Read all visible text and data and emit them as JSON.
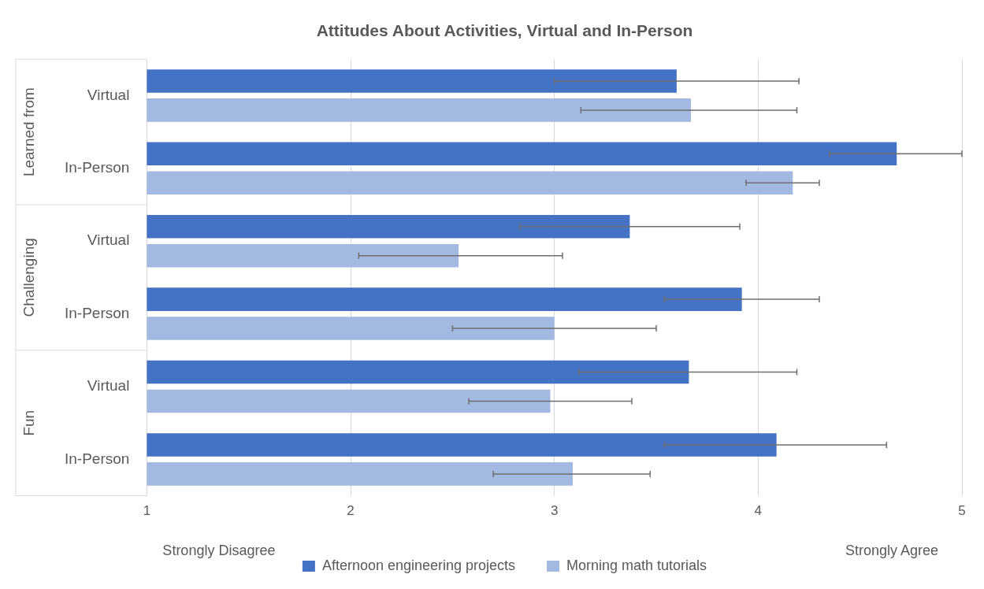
{
  "chart_data": {
    "type": "bar",
    "orientation": "horizontal",
    "title": "Attitudes About Activities, Virtual and In-Person",
    "categories": [
      "Virtual",
      "In-Person",
      "Virtual",
      "In-Person",
      "Virtual",
      "In-Person"
    ],
    "series": [
      {
        "name": "Afternoon engineering projects",
        "color": "#4472c4",
        "values": [
          3.6,
          4.68,
          3.37,
          3.92,
          3.66,
          4.09
        ],
        "errors": [
          [
            3.0,
            4.2
          ],
          [
            4.35,
            5.0
          ],
          [
            2.83,
            3.91
          ],
          [
            3.54,
            4.3
          ],
          [
            3.12,
            4.19
          ],
          [
            3.54,
            4.63
          ]
        ]
      },
      {
        "name": "Morning math tutorials",
        "color": "#a3b9e2",
        "values": [
          3.67,
          4.17,
          2.53,
          3.0,
          2.98,
          3.09
        ],
        "errors": [
          [
            3.13,
            4.19
          ],
          [
            3.94,
            4.3
          ],
          [
            2.04,
            3.04
          ],
          [
            2.5,
            3.5
          ],
          [
            2.58,
            3.38
          ],
          [
            2.7,
            3.47
          ]
        ]
      }
    ],
    "xlim": [
      1,
      5
    ],
    "xticks": [
      1,
      2,
      3,
      4,
      5
    ],
    "grid": "x",
    "legend": "bottom",
    "annotations": [
      "Learned from",
      "Challenging",
      "Fun",
      "Strongly Disagree",
      "Strongly Agree"
    ]
  }
}
